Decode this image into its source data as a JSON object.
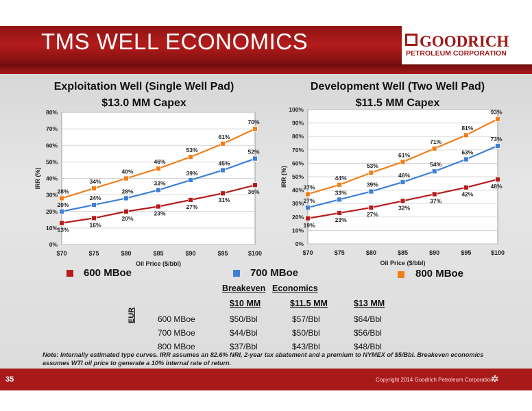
{
  "slide": {
    "title": "TMS WELL ECONOMICS",
    "logo_name": "GOODRICH",
    "logo_sub": "PETROLEUM CORPORATION",
    "page_number": "35",
    "copyright": "Copyright 2014 Goodrich Petroleum Corporation",
    "note": "Note:  Internally estimated type curves.  IRR assumes an 82.6% NRI, 2-year tax abatement and a premium to NYMEX of $5/Bbl.  Breakeven economics assumes WTI oil price to generate  a 10% internal rate of return."
  },
  "legend": [
    {
      "label": "600 MBoe",
      "color": "#b71c1c"
    },
    {
      "label": "700 MBoe",
      "color": "#3f7fd6"
    },
    {
      "label": "800 MBoe",
      "color": "#f07f1a"
    }
  ],
  "breakeven": {
    "title_a": "Breakeven",
    "title_b": "Economics",
    "side_label": "EUR",
    "columns": [
      "$10 MM",
      "$11.5 MM",
      "$13 MM"
    ],
    "rows": [
      {
        "label": "600 MBoe",
        "values": [
          "$50/Bbl",
          "$57/Bbl",
          "$64/Bbl"
        ]
      },
      {
        "label": "700 MBoe",
        "values": [
          "$44/Bbl",
          "$50/Bbl",
          "$56/Bbl"
        ]
      },
      {
        "label": "800 MBoe",
        "values": [
          "$37/Bbl",
          "$43/Bbl",
          "$48/Bbl"
        ]
      }
    ]
  },
  "chart_data": [
    {
      "type": "line",
      "title": "Exploitation Well (Single Well Pad)",
      "subtitle": "$13.0 MM Capex",
      "xlabel": "Oil Price ($/bbl)",
      "ylabel": "IRR (%)",
      "categories": [
        "$70",
        "$75",
        "$80",
        "$85",
        "$90",
        "$95",
        "$100"
      ],
      "ylim": [
        0,
        80
      ],
      "yticks": [
        "0%",
        "10%",
        "20%",
        "30%",
        "40%",
        "50%",
        "60%",
        "70%",
        "80%"
      ],
      "grid": true,
      "series": [
        {
          "name": "600 MBoe",
          "color": "#b71c1c",
          "values": [
            13,
            16,
            20,
            23,
            27,
            31,
            36
          ],
          "labels": [
            "13%",
            "16%",
            "20%",
            "23%",
            "27%",
            "31%",
            "36%"
          ]
        },
        {
          "name": "700 MBoe",
          "color": "#3f7fd6",
          "values": [
            20,
            24,
            28,
            33,
            39,
            45,
            52
          ],
          "labels": [
            "20%",
            "24%",
            "28%",
            "33%",
            "39%",
            "45%",
            "52%"
          ]
        },
        {
          "name": "800 MBoe",
          "color": "#f07f1a",
          "values": [
            28,
            34,
            40,
            46,
            53,
            61,
            70
          ],
          "labels": [
            "28%",
            "34%",
            "40%",
            "46%",
            "53%",
            "61%",
            "70%"
          ]
        }
      ]
    },
    {
      "type": "line",
      "title": "Development Well (Two Well Pad)",
      "subtitle": "$11.5 MM Capex",
      "xlabel": "Oil Price ($/bbl)",
      "ylabel": "IRR (%)",
      "categories": [
        "$70",
        "$75",
        "$80",
        "$85",
        "$90",
        "$95",
        "$100"
      ],
      "ylim": [
        0,
        100
      ],
      "yticks": [
        "0%",
        "10%",
        "20%",
        "30%",
        "40%",
        "50%",
        "60%",
        "70%",
        "80%",
        "90%",
        "100%"
      ],
      "grid": true,
      "series": [
        {
          "name": "600 MBoe",
          "color": "#b71c1c",
          "values": [
            19,
            23,
            27,
            32,
            37,
            42,
            48
          ],
          "labels": [
            "19%",
            "23%",
            "27%",
            "32%",
            "37%",
            "42%",
            "48%"
          ]
        },
        {
          "name": "700 MBoe",
          "color": "#3f7fd6",
          "values": [
            27,
            33,
            39,
            46,
            54,
            63,
            73
          ],
          "labels": [
            "27%",
            "33%",
            "39%",
            "46%",
            "54%",
            "63%",
            "73%"
          ]
        },
        {
          "name": "800 MBoe",
          "color": "#f07f1a",
          "values": [
            37,
            44,
            53,
            61,
            71,
            81,
            93
          ],
          "labels": [
            "37%",
            "44%",
            "53%",
            "61%",
            "71%",
            "81%",
            "93%"
          ]
        }
      ]
    }
  ]
}
